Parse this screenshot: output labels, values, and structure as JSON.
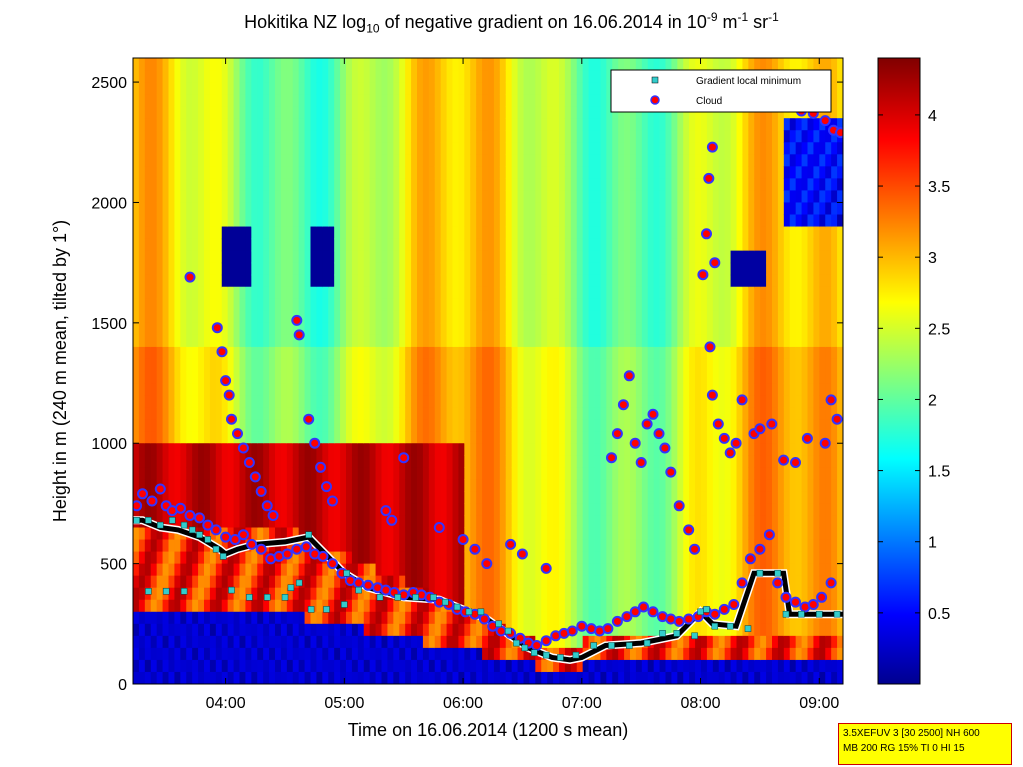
{
  "title": {
    "pre": "Hokitika NZ log",
    "sub": "10",
    "mid": " of negative gradient on 16.06.2014 in 10",
    "sup1": "-9",
    "mid2": " m",
    "sup2": "-1",
    "mid3": " sr",
    "sup3": "-1"
  },
  "info": {
    "line1": "3.5XEFUV 3 [30 2500] NH 600",
    "line2": "MB 200 RG 15% TI 0 HI 15"
  },
  "chart_data": {
    "type": "heatmap",
    "xlabel": "Time on 16.06.2014 (1200 s mean)",
    "ylabel": "Height in m (240 m mean, tilted by 1°)",
    "xlim": [
      3.22,
      9.2
    ],
    "ylim": [
      0,
      2600
    ],
    "x_ticks": [
      {
        "value": 4,
        "label": "04:00"
      },
      {
        "value": 5,
        "label": "05:00"
      },
      {
        "value": 6,
        "label": "06:00"
      },
      {
        "value": 7,
        "label": "07:00"
      },
      {
        "value": 8,
        "label": "08:00"
      },
      {
        "value": 9,
        "label": "09:00"
      }
    ],
    "y_ticks": [
      0,
      500,
      1000,
      1500,
      2000,
      2500
    ],
    "colorbar": {
      "range": [
        0,
        4.4
      ],
      "ticks": [
        0.5,
        1,
        1.5,
        2,
        2.5,
        3,
        3.5,
        4
      ],
      "colormap": "jet"
    },
    "legend": {
      "position": "top-right",
      "entries": [
        {
          "label": "Gradient local minimum",
          "color": "#33cccc"
        },
        {
          "label": "Cloud",
          "color": "#ff0000"
        }
      ]
    },
    "series": [
      {
        "name": "Gradient local minimum",
        "marker": "square",
        "points": [
          [
            3.25,
            680
          ],
          [
            3.35,
            680
          ],
          [
            3.45,
            660
          ],
          [
            3.55,
            680
          ],
          [
            3.65,
            660
          ],
          [
            3.72,
            640
          ],
          [
            3.78,
            620
          ],
          [
            3.85,
            600
          ],
          [
            3.92,
            560
          ],
          [
            3.98,
            530
          ],
          [
            3.35,
            385
          ],
          [
            3.5,
            385
          ],
          [
            3.65,
            385
          ],
          [
            4.05,
            390
          ],
          [
            4.2,
            360
          ],
          [
            4.35,
            360
          ],
          [
            4.5,
            360
          ],
          [
            4.55,
            400
          ],
          [
            4.62,
            420
          ],
          [
            4.7,
            620
          ],
          [
            4.72,
            310
          ],
          [
            4.85,
            310
          ],
          [
            5.0,
            330
          ],
          [
            5.02,
            460
          ],
          [
            5.12,
            390
          ],
          [
            5.3,
            360
          ],
          [
            5.45,
            360
          ],
          [
            5.6,
            360
          ],
          [
            5.75,
            360
          ],
          [
            5.85,
            340
          ],
          [
            5.95,
            320
          ],
          [
            6.05,
            300
          ],
          [
            6.15,
            300
          ],
          [
            6.3,
            250
          ],
          [
            6.38,
            220
          ],
          [
            6.45,
            170
          ],
          [
            6.52,
            150
          ],
          [
            6.6,
            130
          ],
          [
            6.7,
            120
          ],
          [
            6.82,
            110
          ],
          [
            6.95,
            120
          ],
          [
            7.1,
            160
          ],
          [
            7.25,
            160
          ],
          [
            7.4,
            160
          ],
          [
            7.55,
            170
          ],
          [
            7.68,
            210
          ],
          [
            7.8,
            210
          ],
          [
            7.95,
            200
          ],
          [
            8.0,
            300
          ],
          [
            8.05,
            310
          ],
          [
            8.12,
            240
          ],
          [
            8.25,
            240
          ],
          [
            8.4,
            230
          ],
          [
            8.5,
            460
          ],
          [
            8.65,
            460
          ],
          [
            8.72,
            290
          ],
          [
            8.85,
            290
          ],
          [
            9.0,
            290
          ],
          [
            9.15,
            290
          ]
        ]
      },
      {
        "name": "Cloud",
        "marker": "circle",
        "points": [
          [
            3.25,
            740
          ],
          [
            3.3,
            790
          ],
          [
            3.38,
            760
          ],
          [
            3.45,
            810
          ],
          [
            3.5,
            740
          ],
          [
            3.55,
            720
          ],
          [
            3.62,
            730
          ],
          [
            3.7,
            700
          ],
          [
            3.78,
            690
          ],
          [
            3.85,
            660
          ],
          [
            3.92,
            640
          ],
          [
            4.0,
            610
          ],
          [
            4.08,
            600
          ],
          [
            4.15,
            620
          ],
          [
            4.22,
            580
          ],
          [
            4.3,
            560
          ],
          [
            4.38,
            520
          ],
          [
            4.45,
            530
          ],
          [
            4.52,
            540
          ],
          [
            4.6,
            560
          ],
          [
            4.68,
            570
          ],
          [
            4.75,
            540
          ],
          [
            4.82,
            530
          ],
          [
            4.9,
            500
          ],
          [
            4.98,
            460
          ],
          [
            5.05,
            430
          ],
          [
            5.12,
            420
          ],
          [
            5.2,
            410
          ],
          [
            5.28,
            400
          ],
          [
            5.35,
            390
          ],
          [
            5.42,
            380
          ],
          [
            5.5,
            370
          ],
          [
            5.58,
            380
          ],
          [
            5.65,
            370
          ],
          [
            5.72,
            360
          ],
          [
            5.8,
            340
          ],
          [
            5.88,
            330
          ],
          [
            5.95,
            310
          ],
          [
            6.02,
            300
          ],
          [
            6.1,
            290
          ],
          [
            6.18,
            270
          ],
          [
            6.25,
            240
          ],
          [
            6.32,
            220
          ],
          [
            6.4,
            210
          ],
          [
            6.48,
            190
          ],
          [
            6.55,
            170
          ],
          [
            6.62,
            160
          ],
          [
            6.7,
            180
          ],
          [
            6.78,
            200
          ],
          [
            6.85,
            210
          ],
          [
            6.92,
            220
          ],
          [
            7.0,
            240
          ],
          [
            7.08,
            230
          ],
          [
            7.15,
            220
          ],
          [
            7.22,
            230
          ],
          [
            7.3,
            260
          ],
          [
            7.38,
            280
          ],
          [
            7.45,
            300
          ],
          [
            7.52,
            320
          ],
          [
            7.6,
            300
          ],
          [
            7.68,
            280
          ],
          [
            7.75,
            270
          ],
          [
            7.82,
            260
          ],
          [
            7.9,
            270
          ],
          [
            7.98,
            280
          ],
          [
            8.05,
            300
          ],
          [
            8.12,
            290
          ],
          [
            8.2,
            310
          ],
          [
            8.28,
            330
          ],
          [
            8.35,
            420
          ],
          [
            8.42,
            520
          ],
          [
            8.5,
            560
          ],
          [
            8.58,
            620
          ],
          [
            8.65,
            420
          ],
          [
            8.72,
            360
          ],
          [
            8.8,
            340
          ],
          [
            8.88,
            320
          ],
          [
            8.95,
            330
          ],
          [
            9.02,
            360
          ],
          [
            9.1,
            420
          ],
          [
            3.7,
            1690
          ],
          [
            3.93,
            1480
          ],
          [
            3.97,
            1380
          ],
          [
            4.0,
            1260
          ],
          [
            4.03,
            1200
          ],
          [
            4.05,
            1100
          ],
          [
            4.1,
            1040
          ],
          [
            4.15,
            980
          ],
          [
            4.2,
            920
          ],
          [
            4.25,
            860
          ],
          [
            4.3,
            800
          ],
          [
            4.35,
            740
          ],
          [
            4.4,
            700
          ],
          [
            4.6,
            1510
          ],
          [
            4.62,
            1450
          ],
          [
            4.7,
            1100
          ],
          [
            4.75,
            1000
          ],
          [
            4.8,
            900
          ],
          [
            4.85,
            820
          ],
          [
            4.9,
            760
          ],
          [
            5.5,
            940
          ],
          [
            5.4,
            680
          ],
          [
            5.35,
            720
          ],
          [
            5.8,
            650
          ],
          [
            6.0,
            600
          ],
          [
            6.1,
            560
          ],
          [
            6.2,
            500
          ],
          [
            6.4,
            580
          ],
          [
            6.5,
            540
          ],
          [
            6.7,
            480
          ],
          [
            7.25,
            940
          ],
          [
            7.3,
            1040
          ],
          [
            7.35,
            1160
          ],
          [
            7.4,
            1280
          ],
          [
            7.45,
            1000
          ],
          [
            7.5,
            920
          ],
          [
            7.55,
            1080
          ],
          [
            7.6,
            1120
          ],
          [
            7.65,
            1040
          ],
          [
            7.7,
            980
          ],
          [
            7.75,
            880
          ],
          [
            7.82,
            740
          ],
          [
            7.9,
            640
          ],
          [
            7.95,
            560
          ],
          [
            8.02,
            1700
          ],
          [
            8.05,
            1870
          ],
          [
            8.07,
            2100
          ],
          [
            8.1,
            2230
          ],
          [
            8.12,
            1750
          ],
          [
            8.08,
            1400
          ],
          [
            8.1,
            1200
          ],
          [
            8.15,
            1080
          ],
          [
            8.2,
            1020
          ],
          [
            8.25,
            960
          ],
          [
            8.3,
            1000
          ],
          [
            8.35,
            1180
          ],
          [
            8.45,
            1040
          ],
          [
            8.5,
            1060
          ],
          [
            8.6,
            1080
          ],
          [
            8.7,
            930
          ],
          [
            8.8,
            920
          ],
          [
            8.85,
            2380
          ],
          [
            8.95,
            2370
          ],
          [
            9.05,
            2340
          ],
          [
            9.12,
            2300
          ],
          [
            9.18,
            2290
          ],
          [
            9.1,
            1180
          ],
          [
            9.15,
            1100
          ],
          [
            9.05,
            1000
          ],
          [
            8.9,
            1020
          ]
        ]
      },
      {
        "name": "Cloud base line",
        "marker": "line",
        "points": [
          [
            3.2,
            680
          ],
          [
            3.3,
            680
          ],
          [
            3.45,
            650
          ],
          [
            3.6,
            640
          ],
          [
            3.78,
            610
          ],
          [
            3.95,
            560
          ],
          [
            4.0,
            540
          ],
          [
            4.1,
            560
          ],
          [
            4.25,
            580
          ],
          [
            4.5,
            590
          ],
          [
            4.7,
            610
          ],
          [
            4.8,
            560
          ],
          [
            5.0,
            460
          ],
          [
            5.2,
            400
          ],
          [
            5.5,
            360
          ],
          [
            5.8,
            350
          ],
          [
            6.0,
            310
          ],
          [
            6.2,
            270
          ],
          [
            6.4,
            200
          ],
          [
            6.55,
            150
          ],
          [
            6.75,
            110
          ],
          [
            6.9,
            100
          ],
          [
            7.0,
            110
          ],
          [
            7.2,
            160
          ],
          [
            7.5,
            170
          ],
          [
            7.8,
            200
          ],
          [
            8.0,
            300
          ],
          [
            8.1,
            250
          ],
          [
            8.3,
            240
          ],
          [
            8.45,
            460
          ],
          [
            8.7,
            460
          ],
          [
            8.75,
            290
          ],
          [
            9.2,
            290
          ]
        ]
      }
    ]
  }
}
